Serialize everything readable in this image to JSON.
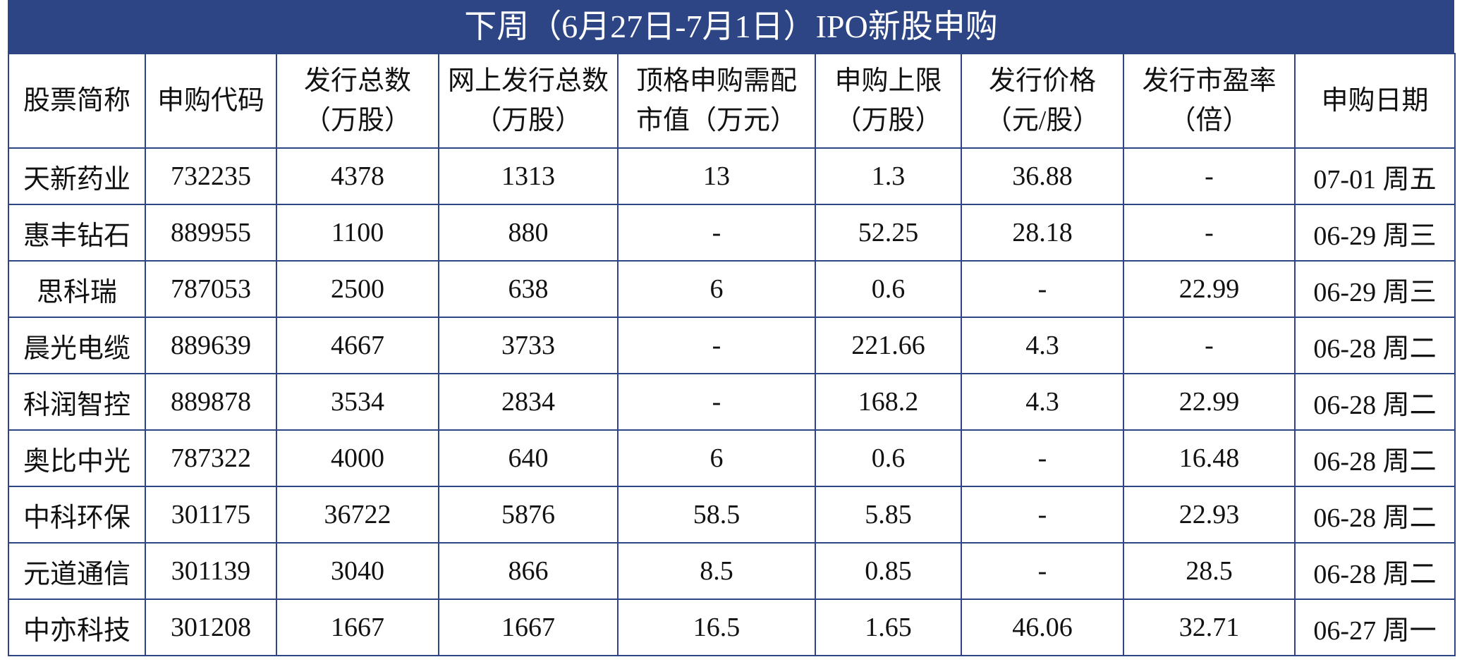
{
  "title": "下周（6月27日-7月1日）IPO新股申购",
  "table": {
    "header": [
      [
        "股票简称"
      ],
      [
        "申购代码"
      ],
      [
        "发行总数",
        "（万股）"
      ],
      [
        "网上发行总数",
        "（万股）"
      ],
      [
        "顶格申购需配",
        "市值（万元）"
      ],
      [
        "申购上限",
        "（万股）"
      ],
      [
        "发行价格",
        "（元/股）"
      ],
      [
        "发行市盈率",
        "（倍）"
      ],
      [
        "申购日期"
      ]
    ],
    "rows": [
      [
        "天新药业",
        "732235",
        "4378",
        "1313",
        "13",
        "1.3",
        "36.88",
        "-",
        "07-01 周五"
      ],
      [
        "惠丰钻石",
        "889955",
        "1100",
        "880",
        "-",
        "52.25",
        "28.18",
        "-",
        "06-29 周三"
      ],
      [
        "思科瑞",
        "787053",
        "2500",
        "638",
        "6",
        "0.6",
        "-",
        "22.99",
        "06-29 周三"
      ],
      [
        "晨光电缆",
        "889639",
        "4667",
        "3733",
        "-",
        "221.66",
        "4.3",
        "-",
        "06-28 周二"
      ],
      [
        "科润智控",
        "889878",
        "3534",
        "2834",
        "-",
        "168.2",
        "4.3",
        "22.99",
        "06-28 周二"
      ],
      [
        "奥比中光",
        "787322",
        "4000",
        "640",
        "6",
        "0.6",
        "-",
        "16.48",
        "06-28 周二"
      ],
      [
        "中科环保",
        "301175",
        "36722",
        "5876",
        "58.5",
        "5.85",
        "-",
        "22.93",
        "06-28 周二"
      ],
      [
        "元道通信",
        "301139",
        "3040",
        "866",
        "8.5",
        "0.85",
        "-",
        "28.5",
        "06-28 周二"
      ],
      [
        "中亦科技",
        "301208",
        "1667",
        "1667",
        "16.5",
        "1.65",
        "46.06",
        "32.71",
        "06-27 周一"
      ]
    ]
  }
}
